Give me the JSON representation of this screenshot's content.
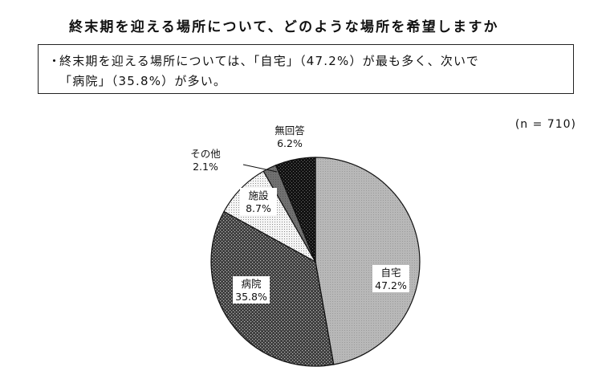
{
  "header": {
    "title": "終末期を迎える場所について、どのような場所を希望しますか"
  },
  "summary": {
    "bullet": "・",
    "line1": "終末期を迎える場所については、「自宅」（47.2%）が最も多く、次いで",
    "line2": "「病院」（35.8%）が多い。"
  },
  "sample": {
    "n_label": "(n = 710)"
  },
  "chart_data": {
    "type": "pie",
    "title": "終末期を迎える場所について、どのような場所を希望しますか",
    "n": 710,
    "slices": [
      {
        "label": "自宅",
        "value": 47.2,
        "value_label": "47.2%",
        "pattern": "light-gray"
      },
      {
        "label": "病院",
        "value": 35.8,
        "value_label": "35.8%",
        "pattern": "dark-dots"
      },
      {
        "label": "施設",
        "value": 8.7,
        "value_label": "8.7%",
        "pattern": "light-dots"
      },
      {
        "label": "その他",
        "value": 2.1,
        "value_label": "2.1%",
        "pattern": "dark-gray"
      },
      {
        "label": "無回答",
        "value": 6.2,
        "value_label": "6.2%",
        "pattern": "black-dots"
      }
    ],
    "start": "12 o'clock",
    "direction": "clockwise",
    "colors": {
      "light-gray": "#b4b4b4",
      "dark-dots": "#4a4a4a",
      "light-dots": "#f2f2f2",
      "dark-gray": "#707070",
      "black-dots": "#141414"
    }
  }
}
